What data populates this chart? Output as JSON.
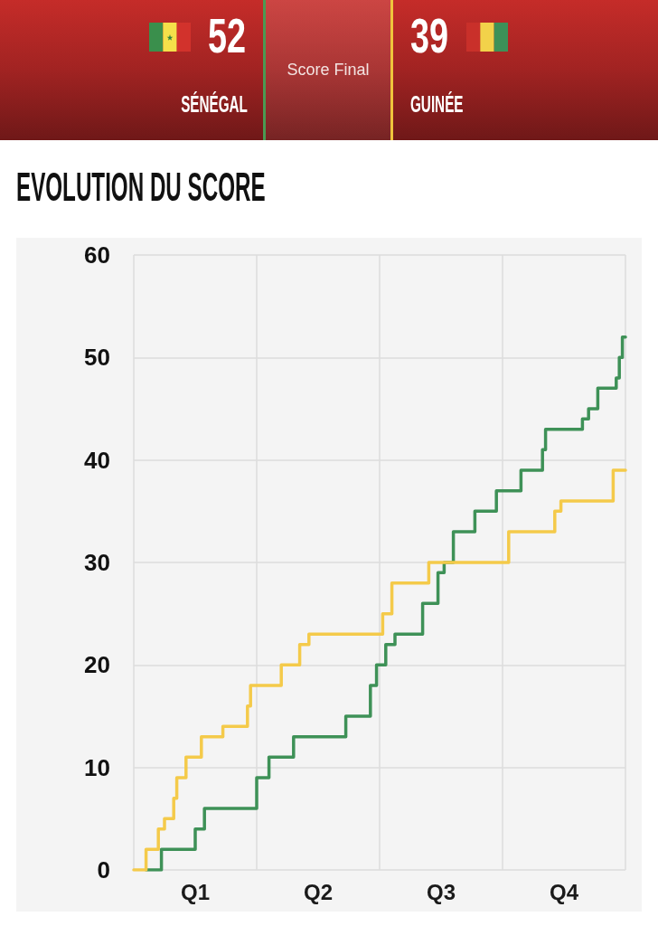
{
  "chart_data": {
    "type": "step",
    "title": "EVOLUTION DU SCORE",
    "annotations": [
      "52",
      "SÉNÉGAL",
      "Score Final",
      "39",
      "GUINÉE"
    ],
    "categories": [
      null,
      null,
      null,
      null,
      null,
      null,
      null,
      null,
      null,
      null,
      null,
      null,
      null,
      null,
      null,
      null,
      null,
      null,
      null,
      null,
      "Q1",
      null,
      null,
      null,
      null,
      null,
      null,
      null,
      null,
      null,
      null,
      null,
      null,
      null,
      null,
      null,
      null,
      null,
      null,
      null,
      null,
      null,
      null,
      null,
      null,
      null,
      null,
      null,
      null,
      null,
      null,
      null,
      null,
      null,
      null,
      null,
      null,
      null,
      null,
      null,
      "Q2",
      null,
      null,
      null,
      null,
      null,
      null,
      null,
      null,
      null,
      null,
      null,
      null,
      null,
      null,
      null,
      null,
      null,
      null,
      null,
      null,
      null,
      null,
      null,
      null,
      null,
      null,
      null,
      null,
      null,
      null,
      null,
      null,
      null,
      null,
      null,
      null,
      null,
      null,
      null,
      "Q3",
      null,
      null,
      null,
      null,
      null,
      null,
      null,
      null,
      null,
      null,
      null,
      null,
      null,
      null,
      null,
      null,
      null,
      null,
      null,
      null,
      null,
      null,
      null,
      null,
      null,
      null,
      null,
      null,
      null,
      null,
      null,
      null,
      null,
      null,
      null,
      null,
      null,
      null,
      null,
      "Q4",
      null,
      null,
      null,
      null,
      null,
      null,
      null,
      null,
      null,
      null,
      null,
      null,
      null,
      null,
      null,
      null,
      null,
      null,
      null,
      null
    ],
    "ylim": [
      0,
      60
    ],
    "yticks": [
      0,
      10,
      20,
      30,
      40,
      50,
      60
    ],
    "grid": true,
    "marker": "none",
    "series": [
      {
        "color": "#3e9157",
        "values": [
          null,
          null,
          null,
          null,
          0,
          0,
          0,
          0,
          0,
          2,
          2,
          2,
          2,
          2,
          2,
          2,
          2,
          2,
          2,
          2,
          4,
          4,
          4,
          6,
          6,
          6,
          6,
          6,
          6,
          6,
          6,
          6,
          6,
          6,
          6,
          6,
          6,
          6,
          6,
          6,
          9,
          9,
          9,
          9,
          11,
          11,
          11,
          11,
          11,
          11,
          11,
          11,
          13,
          13,
          13,
          13,
          13,
          13,
          13,
          13,
          13,
          13,
          13,
          13,
          13,
          13,
          13,
          13,
          13,
          15,
          15,
          15,
          15,
          15,
          15,
          15,
          15,
          18,
          18,
          20,
          20,
          20,
          22,
          22,
          22,
          23,
          23,
          23,
          23,
          23,
          23,
          23,
          23,
          23,
          26,
          26,
          26,
          26,
          26,
          29,
          29,
          30,
          30,
          30,
          33,
          33,
          33,
          33,
          33,
          33,
          33,
          35,
          35,
          35,
          35,
          35,
          35,
          35,
          37,
          37,
          37,
          37,
          37,
          37,
          37,
          37,
          39,
          39,
          39,
          39,
          39,
          39,
          39,
          41,
          43,
          43,
          43,
          43,
          43,
          43,
          43,
          43,
          43,
          43,
          43,
          43,
          44,
          44,
          45,
          45,
          45,
          47,
          47,
          47,
          47,
          47,
          47,
          48,
          50,
          52,
          52
        ]
      },
      {
        "color": "#f4ca4a",
        "values": [
          0,
          0,
          0,
          0,
          2,
          2,
          2,
          2,
          4,
          4,
          5,
          5,
          5,
          7,
          9,
          9,
          9,
          11,
          11,
          11,
          11,
          11,
          13,
          13,
          13,
          13,
          13,
          13,
          13,
          14,
          14,
          14,
          14,
          14,
          14,
          14,
          14,
          16,
          18,
          18,
          18,
          18,
          18,
          18,
          18,
          18,
          18,
          18,
          20,
          20,
          20,
          20,
          20,
          20,
          22,
          22,
          22,
          23,
          23,
          23,
          23,
          23,
          23,
          23,
          23,
          23,
          23,
          23,
          23,
          23,
          23,
          23,
          23,
          23,
          23,
          23,
          23,
          23,
          23,
          23,
          23,
          25,
          25,
          25,
          28,
          28,
          28,
          28,
          28,
          28,
          28,
          28,
          28,
          28,
          28,
          28,
          30,
          30,
          30,
          30,
          30,
          30,
          30,
          30,
          30,
          30,
          30,
          30,
          30,
          30,
          30,
          30,
          30,
          30,
          30,
          30,
          30,
          30,
          30,
          30,
          30,
          30,
          33,
          33,
          33,
          33,
          33,
          33,
          33,
          33,
          33,
          33,
          33,
          33,
          33,
          33,
          33,
          35,
          35,
          36,
          36,
          36,
          36,
          36,
          36,
          36,
          36,
          36,
          36,
          36,
          36,
          36,
          36,
          36,
          36,
          36,
          39,
          39,
          39,
          39,
          39
        ]
      }
    ]
  }
}
